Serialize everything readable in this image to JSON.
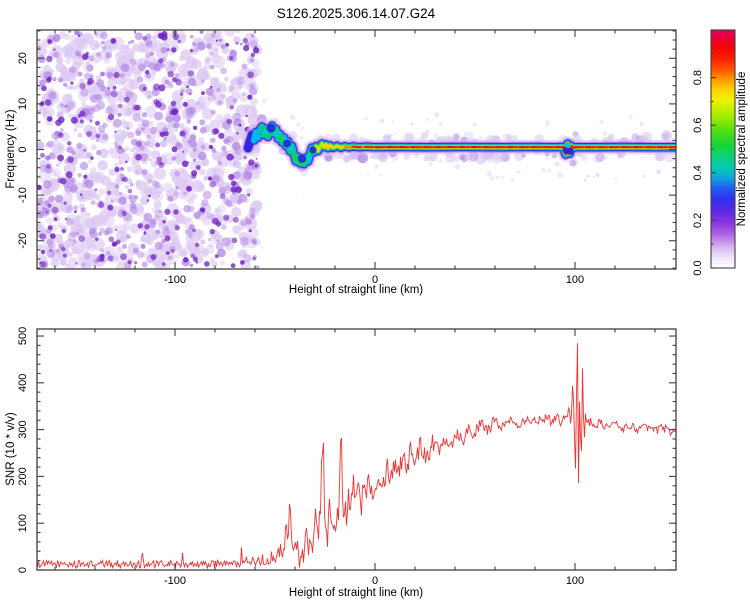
{
  "title": "S126.2025.306.14.07.G24",
  "colors": {
    "background": "#ffffff",
    "frame": "#404040",
    "text": "#000000",
    "snr_line": "#f03434",
    "noise_light": "#dcc8f2",
    "noise_mid": "#b488e6",
    "noise_dark": "#6f22c4"
  },
  "chart_data": [
    {
      "type": "heatmap",
      "panel": "spectrogram",
      "xlabel": "Height of straight line (km)",
      "ylabel": "Frequency (Hz)",
      "xlim": [
        -169,
        150.5
      ],
      "ylim": [
        -26.2,
        26.2
      ],
      "xticks_major": [
        -100,
        0,
        100
      ],
      "xtick_minor_step": 20,
      "yticks_major": [
        -20,
        -10,
        0,
        10,
        20
      ],
      "ytick_minor_step": 2,
      "noise_region_km": [
        -169,
        -58
      ],
      "noise_description": "incoherent purple speckle noise filling all frequencies below -58 km",
      "disturbance_km": [
        95,
        99
      ],
      "signal_core_intensity": 0.95,
      "signal_trace": [
        [
          -63.5,
          0.3
        ],
        [
          -62.5,
          1.8
        ],
        [
          -61.5,
          3.2
        ],
        [
          -60.5,
          2.0
        ],
        [
          -59.5,
          3.8
        ],
        [
          -58.5,
          2.6
        ],
        [
          -57.5,
          4.4
        ],
        [
          -56.5,
          5.0
        ],
        [
          -55.5,
          3.2
        ],
        [
          -54.5,
          4.6
        ],
        [
          -53.5,
          2.8
        ],
        [
          -52.5,
          4.2
        ],
        [
          -51.5,
          5.2
        ],
        [
          -50.5,
          3.5
        ],
        [
          -49.5,
          4.5
        ],
        [
          -48.5,
          2.4
        ],
        [
          -47.5,
          3.4
        ],
        [
          -46.5,
          1.6
        ],
        [
          -45.5,
          2.6
        ],
        [
          -44.5,
          0.8
        ],
        [
          -43.5,
          1.8
        ],
        [
          -42.5,
          -0.4
        ],
        [
          -41.5,
          0.8
        ],
        [
          -40.5,
          -1.2
        ],
        [
          -39.5,
          -2.6
        ],
        [
          -38.5,
          -1.6
        ],
        [
          -37.5,
          -3.0
        ],
        [
          -36.5,
          -2.0
        ],
        [
          -35.5,
          -3.2
        ],
        [
          -34.5,
          -1.8
        ],
        [
          -33.5,
          -2.6
        ],
        [
          -32.5,
          -1.0
        ],
        [
          -31.5,
          0.4
        ],
        [
          -30.5,
          -0.6
        ],
        [
          -29.5,
          0.7
        ],
        [
          -28.5,
          -0.3
        ],
        [
          -27.5,
          0.6
        ],
        [
          -26.5,
          1.3
        ],
        [
          -25.5,
          0.5
        ],
        [
          -24.5,
          1.1
        ],
        [
          -23.5,
          0.3
        ],
        [
          -22.5,
          0.9
        ],
        [
          -21,
          0.4
        ],
        [
          -19,
          0.8
        ],
        [
          -17,
          0.4
        ],
        [
          -15,
          0.7
        ],
        [
          -13,
          0.45
        ],
        [
          -11,
          0.65
        ],
        [
          -8,
          0.5
        ],
        [
          -4,
          0.6
        ],
        [
          0,
          0.5
        ],
        [
          10,
          0.55
        ],
        [
          25,
          0.5
        ],
        [
          45,
          0.55
        ],
        [
          65,
          0.5
        ],
        [
          80,
          0.55
        ],
        [
          90,
          0.5
        ],
        [
          94,
          0.55
        ],
        [
          95.3,
          -1.1
        ],
        [
          96.3,
          1.3
        ],
        [
          97.3,
          -0.9
        ],
        [
          98.3,
          0.8
        ],
        [
          99.3,
          0.3
        ],
        [
          100,
          0.5
        ],
        [
          110,
          0.5
        ],
        [
          125,
          0.55
        ],
        [
          140,
          0.5
        ],
        [
          150.5,
          0.5
        ]
      ],
      "colorbar": {
        "label": "Normalized spectral amplitude",
        "range": [
          0,
          1
        ],
        "ticks": [
          0,
          0.2,
          0.4,
          0.6,
          0.8
        ],
        "tick_minor_step": 0.1,
        "stops": [
          [
            0,
            "#ffffff"
          ],
          [
            0.04,
            "#f1e8fa"
          ],
          [
            0.09,
            "#d6b3ef"
          ],
          [
            0.14,
            "#ae66e4"
          ],
          [
            0.19,
            "#8836df"
          ],
          [
            0.24,
            "#5b28e6"
          ],
          [
            0.29,
            "#2e31ee"
          ],
          [
            0.34,
            "#2063ee"
          ],
          [
            0.38,
            "#12a4dd"
          ],
          [
            0.42,
            "#06c8b4"
          ],
          [
            0.47,
            "#0ed077"
          ],
          [
            0.52,
            "#1bd433"
          ],
          [
            0.57,
            "#4ade18"
          ],
          [
            0.62,
            "#8ce800"
          ],
          [
            0.67,
            "#c8f000"
          ],
          [
            0.71,
            "#f2ef00"
          ],
          [
            0.75,
            "#ffd000"
          ],
          [
            0.79,
            "#ff9c00"
          ],
          [
            0.83,
            "#ff5a00"
          ],
          [
            0.88,
            "#fb2000"
          ],
          [
            0.93,
            "#f00505"
          ],
          [
            0.97,
            "#e6003a"
          ],
          [
            1,
            "#df0060"
          ]
        ]
      }
    },
    {
      "type": "line",
      "panel": "snr",
      "xlabel": "Height of straight line (km)",
      "ylabel": "SNR (10 * v/v)",
      "line_color": "#f03434",
      "xlim": [
        -169,
        150.5
      ],
      "ylim": [
        0,
        515
      ],
      "xticks_major": [
        -100,
        0,
        100
      ],
      "xtick_minor_step": 20,
      "yticks_major": [
        0,
        100,
        200,
        300,
        400,
        500
      ],
      "ytick_minor_step": 20,
      "series": [
        [
          -169,
          13
        ],
        [
          -150,
          12
        ],
        [
          -130,
          13
        ],
        [
          -110,
          12
        ],
        [
          -95,
          13
        ],
        [
          -85,
          12
        ],
        [
          -75,
          13
        ],
        [
          -68,
          13
        ],
        [
          -63,
          15
        ],
        [
          -60,
          18
        ],
        [
          -57,
          22
        ],
        [
          -54,
          18
        ],
        [
          -51,
          32
        ],
        [
          -49,
          24
        ],
        [
          -47,
          55
        ],
        [
          -45.5,
          30
        ],
        [
          -44.5,
          105
        ],
        [
          -43.5,
          45
        ],
        [
          -42.5,
          155
        ],
        [
          -41.5,
          60
        ],
        [
          -40.5,
          30
        ],
        [
          -39.5,
          70
        ],
        [
          -38.5,
          35
        ],
        [
          -37.5,
          20
        ],
        [
          -36.5,
          50
        ],
        [
          -35.5,
          25
        ],
        [
          -34.5,
          85
        ],
        [
          -33.5,
          45
        ],
        [
          -32.5,
          70
        ],
        [
          -31.5,
          40
        ],
        [
          -30.5,
          65
        ],
        [
          -29.5,
          148
        ],
        [
          -28.5,
          70
        ],
        [
          -27.5,
          118
        ],
        [
          -26,
          305
        ],
        [
          -25,
          90
        ],
        [
          -24,
          50
        ],
        [
          -23,
          165
        ],
        [
          -22,
          75
        ],
        [
          -21,
          120
        ],
        [
          -20,
          62
        ],
        [
          -19,
          100
        ],
        [
          -18,
          140
        ],
        [
          -17,
          315
        ],
        [
          -16,
          92
        ],
        [
          -15,
          130
        ],
        [
          -14,
          100
        ],
        [
          -13,
          160
        ],
        [
          -12,
          122
        ],
        [
          -11,
          185
        ],
        [
          -10,
          150
        ],
        [
          -9,
          200
        ],
        [
          -8,
          162
        ],
        [
          -7,
          136
        ],
        [
          -6,
          175
        ],
        [
          -5,
          195
        ],
        [
          -4,
          165
        ],
        [
          -3,
          215
        ],
        [
          -2,
          176
        ],
        [
          -1,
          155
        ],
        [
          0,
          190
        ],
        [
          2,
          205
        ],
        [
          4,
          180
        ],
        [
          6,
          225
        ],
        [
          8,
          196
        ],
        [
          10,
          235
        ],
        [
          12,
          210
        ],
        [
          14,
          250
        ],
        [
          16,
          222
        ],
        [
          18,
          258
        ],
        [
          20,
          236
        ],
        [
          23,
          265
        ],
        [
          26,
          246
        ],
        [
          29,
          275
        ],
        [
          32,
          256
        ],
        [
          35,
          285
        ],
        [
          38,
          268
        ],
        [
          41,
          295
        ],
        [
          44,
          278
        ],
        [
          47,
          305
        ],
        [
          50,
          290
        ],
        [
          53,
          312
        ],
        [
          56,
          298
        ],
        [
          60,
          318
        ],
        [
          64,
          306
        ],
        [
          68,
          322
        ],
        [
          72,
          312
        ],
        [
          76,
          326
        ],
        [
          80,
          316
        ],
        [
          84,
          328
        ],
        [
          88,
          318
        ],
        [
          91,
          330
        ],
        [
          93,
          316
        ],
        [
          95,
          335
        ],
        [
          96,
          322
        ],
        [
          97,
          352
        ],
        [
          98,
          302
        ],
        [
          99,
          420
        ],
        [
          99.6,
          300
        ],
        [
          100.2,
          200
        ],
        [
          100.7,
          360
        ],
        [
          101.2,
          510
        ],
        [
          101.8,
          160
        ],
        [
          102.4,
          425
        ],
        [
          103,
          172
        ],
        [
          103.8,
          452
        ],
        [
          104.5,
          262
        ],
        [
          105.2,
          332
        ],
        [
          106,
          312
        ],
        [
          108,
          318
        ],
        [
          110,
          308
        ],
        [
          113,
          315
        ],
        [
          116,
          306
        ],
        [
          120,
          312
        ],
        [
          124,
          302
        ],
        [
          128,
          308
        ],
        [
          132,
          300
        ],
        [
          136,
          306
        ],
        [
          140,
          298
        ],
        [
          144,
          304
        ],
        [
          148,
          296
        ],
        [
          150.5,
          300
        ]
      ],
      "noise_amplitude_segments": [
        [
          -169,
          -62,
          8
        ],
        [
          -62,
          -48,
          12
        ],
        [
          -48,
          -30,
          20
        ],
        [
          -30,
          -5,
          30
        ],
        [
          -5,
          30,
          24
        ],
        [
          30,
          60,
          15
        ],
        [
          60,
          95,
          10
        ],
        [
          95,
          106,
          5
        ],
        [
          106,
          150.5,
          9
        ]
      ]
    }
  ]
}
